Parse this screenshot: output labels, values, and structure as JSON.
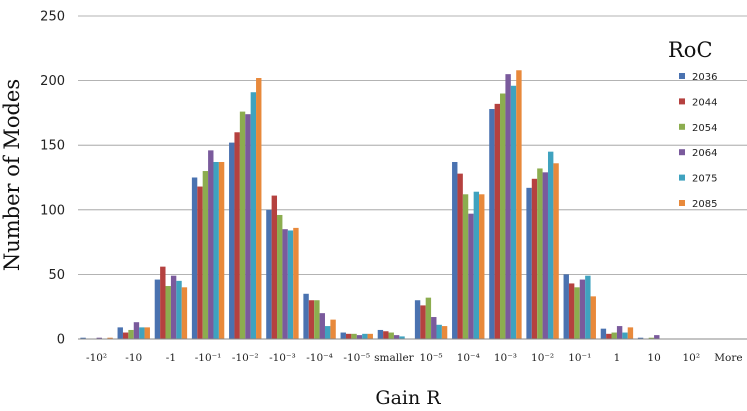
{
  "chart_data": {
    "type": "bar",
    "xlabel": "Gain R",
    "ylabel": "Number of Modes",
    "ylim": [
      0,
      250
    ],
    "yticks": [
      0,
      50,
      100,
      150,
      200,
      250
    ],
    "grid": "horizontal",
    "legend": {
      "title": "RoC",
      "position": "right"
    },
    "categories": [
      "-10²",
      "-10",
      "-1",
      "-10⁻¹",
      "-10⁻²",
      "-10⁻³",
      "-10⁻⁴",
      "-10⁻⁵",
      "smaller",
      "10⁻⁵",
      "10⁻⁴",
      "10⁻³",
      "10⁻²",
      "10⁻¹",
      "1",
      "10",
      "10²",
      "More"
    ],
    "series": [
      {
        "name": "2036",
        "color": "#4a72b0",
        "values": [
          1,
          9,
          46,
          125,
          152,
          100,
          35,
          5,
          7,
          30,
          137,
          178,
          117,
          50,
          8,
          1,
          0,
          0
        ]
      },
      {
        "name": "2044",
        "color": "#b5413f",
        "values": [
          0,
          5,
          56,
          118,
          160,
          111,
          30,
          4,
          6,
          26,
          128,
          182,
          124,
          43,
          4,
          0,
          0,
          0
        ]
      },
      {
        "name": "2054",
        "color": "#8cad4f",
        "values": [
          0,
          7,
          41,
          130,
          176,
          96,
          30,
          4,
          5,
          32,
          112,
          190,
          132,
          40,
          5,
          1,
          0,
          0
        ]
      },
      {
        "name": "2064",
        "color": "#7a5a9c",
        "values": [
          1,
          13,
          49,
          146,
          174,
          85,
          20,
          3,
          3,
          17,
          97,
          205,
          129,
          46,
          10,
          3,
          0,
          0
        ]
      },
      {
        "name": "2075",
        "color": "#3fa2bf",
        "values": [
          0,
          9,
          45,
          137,
          191,
          84,
          10,
          4,
          2,
          11,
          114,
          196,
          145,
          49,
          5,
          0,
          0,
          0
        ]
      },
      {
        "name": "2085",
        "color": "#e8893b",
        "values": [
          1,
          9,
          40,
          137,
          202,
          86,
          15,
          4,
          0,
          10,
          112,
          208,
          136,
          33,
          9,
          0,
          0,
          0
        ]
      }
    ]
  }
}
